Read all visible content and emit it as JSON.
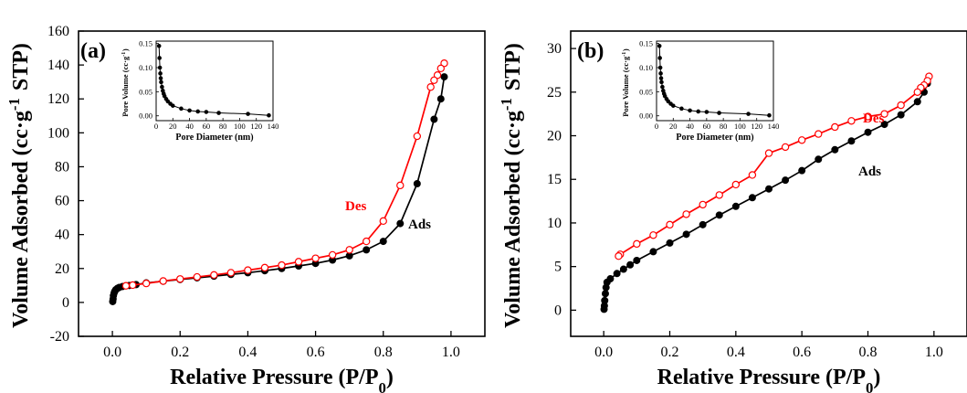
{
  "chart_data": [
    {
      "type": "line",
      "panel_label": "(a)",
      "xlabel": "Relative Pressure (P/P0)",
      "ylabel": "Volume Adsorbed (cc·g-1 STP)",
      "xlim": [
        -0.1,
        1.1
      ],
      "ylim": [
        -20,
        160
      ],
      "xticks": [
        0.0,
        0.2,
        0.4,
        0.6,
        0.8,
        1.0
      ],
      "yticks": [
        -20,
        0,
        20,
        40,
        60,
        80,
        100,
        120,
        140,
        160
      ],
      "series": [
        {
          "name": "Ads",
          "color": "#000000",
          "marker": "filled-circle",
          "x": [
            0.001,
            0.002,
            0.003,
            0.005,
            0.007,
            0.01,
            0.015,
            0.02,
            0.03,
            0.05,
            0.07,
            0.1,
            0.15,
            0.2,
            0.25,
            0.3,
            0.35,
            0.4,
            0.45,
            0.5,
            0.55,
            0.6,
            0.65,
            0.7,
            0.75,
            0.8,
            0.85,
            0.9,
            0.95,
            0.97,
            0.98
          ],
          "y": [
            0.5,
            2,
            4,
            5.5,
            6.5,
            7.5,
            8.3,
            8.8,
            9.4,
            10,
            10.5,
            11.5,
            12.5,
            13.5,
            14.5,
            15.5,
            16.5,
            17.5,
            18.7,
            20,
            21.5,
            23,
            25,
            27.5,
            31,
            36,
            46.5,
            70,
            108,
            120,
            133
          ]
        },
        {
          "name": "Des",
          "color": "#ff0000",
          "marker": "open-circle",
          "x": [
            0.98,
            0.97,
            0.96,
            0.95,
            0.94,
            0.9,
            0.85,
            0.8,
            0.75,
            0.7,
            0.65,
            0.6,
            0.55,
            0.5,
            0.45,
            0.4,
            0.35,
            0.3,
            0.25,
            0.2,
            0.15,
            0.1,
            0.06,
            0.04
          ],
          "y": [
            141,
            138,
            134,
            131,
            127,
            98,
            69,
            48,
            36,
            31,
            28,
            26,
            24,
            22,
            20.5,
            19,
            17.5,
            16.2,
            15,
            13.8,
            12.6,
            11.2,
            10.2,
            9.8
          ]
        }
      ],
      "annotations": [
        "Des",
        "Ads"
      ],
      "inset": {
        "type": "line",
        "xlabel": "Pore Diameter (nm)",
        "ylabel": "Pore Volume (cc·g-1)",
        "xlim": [
          0,
          140
        ],
        "ylim": [
          -0.01,
          0.155
        ],
        "xticks": [
          0,
          20,
          40,
          60,
          80,
          100,
          120,
          140
        ],
        "yticks": [
          0.0,
          0.05,
          0.1,
          0.15
        ],
        "x": [
          3.5,
          4,
          4.5,
          5,
          5.5,
          6,
          7,
          8,
          9,
          10,
          12,
          14,
          17,
          20,
          30,
          40,
          50,
          60,
          75,
          110,
          135
        ],
        "y": [
          0.145,
          0.12,
          0.1,
          0.088,
          0.078,
          0.07,
          0.06,
          0.052,
          0.046,
          0.041,
          0.035,
          0.03,
          0.025,
          0.021,
          0.015,
          0.011,
          0.009,
          0.008,
          0.006,
          0.004,
          0.001
        ]
      }
    },
    {
      "type": "line",
      "panel_label": "(b)",
      "xlabel": "Relative Pressure (P/P0)",
      "ylabel": "Volume Adsorbed (cc·g-1 STP)",
      "xlim": [
        -0.1,
        1.1
      ],
      "ylim": [
        -3,
        32
      ],
      "xticks": [
        0.0,
        0.2,
        0.4,
        0.6,
        0.8,
        1.0
      ],
      "yticks": [
        0,
        5,
        10,
        15,
        20,
        25,
        30
      ],
      "series": [
        {
          "name": "Ads",
          "color": "#000000",
          "marker": "filled-circle",
          "x": [
            0.001,
            0.002,
            0.003,
            0.005,
            0.007,
            0.01,
            0.02,
            0.04,
            0.06,
            0.08,
            0.1,
            0.15,
            0.2,
            0.25,
            0.3,
            0.35,
            0.4,
            0.45,
            0.5,
            0.55,
            0.6,
            0.65,
            0.7,
            0.75,
            0.8,
            0.85,
            0.9,
            0.95,
            0.97,
            0.98
          ],
          "y": [
            0.1,
            0.5,
            1.1,
            1.9,
            2.6,
            3.2,
            3.6,
            4.2,
            4.7,
            5.2,
            5.7,
            6.7,
            7.7,
            8.7,
            9.8,
            10.9,
            11.9,
            12.9,
            13.9,
            14.9,
            16.0,
            17.3,
            18.4,
            19.4,
            20.4,
            21.3,
            22.4,
            23.9,
            25,
            26
          ]
        },
        {
          "name": "Des",
          "color": "#ff0000",
          "marker": "open-circle",
          "x": [
            0.985,
            0.98,
            0.97,
            0.96,
            0.95,
            0.9,
            0.85,
            0.8,
            0.75,
            0.7,
            0.65,
            0.6,
            0.55,
            0.5,
            0.45,
            0.4,
            0.35,
            0.3,
            0.25,
            0.2,
            0.15,
            0.1,
            0.05,
            0.045
          ],
          "y": [
            26.8,
            26.3,
            25.8,
            25.5,
            25,
            23.5,
            22.5,
            22.2,
            21.7,
            21,
            20.2,
            19.5,
            18.7,
            18.0,
            15.5,
            14.4,
            13.2,
            12.1,
            11.0,
            9.8,
            8.6,
            7.6,
            6.4,
            6.2
          ]
        }
      ],
      "annotations": [
        "Des",
        "Ads"
      ],
      "inset": {
        "type": "line",
        "xlabel": "Pore Diameter (nm)",
        "ylabel": "Pore Volume (cc·g-1)",
        "xlim": [
          0,
          140
        ],
        "ylim": [
          -0.01,
          0.155
        ],
        "xticks": [
          0,
          20,
          40,
          60,
          80,
          100,
          120,
          140
        ],
        "yticks": [
          0.0,
          0.05,
          0.1,
          0.15
        ],
        "x": [
          3.5,
          4,
          4.5,
          5,
          5.5,
          6,
          7,
          8,
          9,
          10,
          12,
          14,
          17,
          20,
          30,
          40,
          50,
          60,
          75,
          110,
          135
        ],
        "y": [
          0.145,
          0.12,
          0.1,
          0.088,
          0.078,
          0.07,
          0.06,
          0.052,
          0.046,
          0.041,
          0.035,
          0.03,
          0.025,
          0.021,
          0.015,
          0.011,
          0.009,
          0.008,
          0.006,
          0.004,
          0.001
        ]
      }
    }
  ]
}
